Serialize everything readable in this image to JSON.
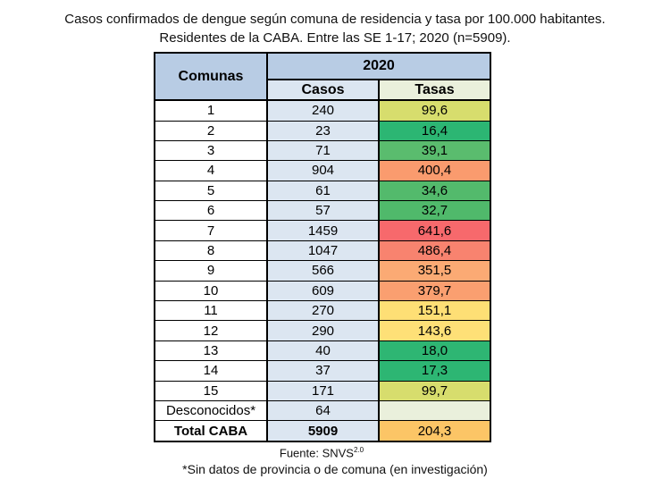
{
  "title": {
    "line1": "Casos confirmados de dengue según comuna de residencia y tasa por 100.000 habitantes.",
    "line2": "Residentes de la CABA. Entre las SE 1-17; 2020 (n=5909)."
  },
  "chart_data": {
    "type": "table",
    "title": "Casos confirmados de dengue según comuna de residencia y tasa por 100.000 habitantes. Residentes de la CABA. Entre las SE 1-17; 2020 (n=5909).",
    "year": "2020",
    "columns": [
      "Comunas",
      "Casos",
      "Tasas"
    ],
    "rows": [
      [
        "1",
        240,
        99.6
      ],
      [
        "2",
        23,
        16.4
      ],
      [
        "3",
        71,
        39.1
      ],
      [
        "4",
        904,
        400.4
      ],
      [
        "5",
        61,
        34.6
      ],
      [
        "6",
        57,
        32.7
      ],
      [
        "7",
        1459,
        641.6
      ],
      [
        "8",
        1047,
        486.4
      ],
      [
        "9",
        566,
        351.5
      ],
      [
        "10",
        609,
        379.7
      ],
      [
        "11",
        270,
        151.1
      ],
      [
        "12",
        290,
        143.6
      ],
      [
        "13",
        40,
        18.0
      ],
      [
        "14",
        37,
        17.3
      ],
      [
        "15",
        171,
        99.7
      ],
      [
        "Desconocidos*",
        64,
        null
      ],
      [
        "Total CABA",
        5909,
        204.3
      ]
    ],
    "notes": "Tasas column uses a green-yellow-red color scale (min 16,4 green; max 641,6 red)"
  },
  "table": {
    "corner_header": "Comunas",
    "year_header": "2020",
    "casos_header": "Casos",
    "tasas_header": "Tasas",
    "colors": {
      "header_blue": "#b8cce4",
      "casos_bg": "#dce6f1",
      "tasas_header_bg": "#eaf0dc",
      "border": "#000000"
    },
    "rows": [
      {
        "comuna": "1",
        "casos": "240",
        "tasa": "99,6",
        "tasa_bg": "#d7dd6d",
        "bold": false
      },
      {
        "comuna": "2",
        "casos": "23",
        "tasa": "16,4",
        "tasa_bg": "#2cb673",
        "bold": false
      },
      {
        "comuna": "3",
        "casos": "71",
        "tasa": "39,1",
        "tasa_bg": "#5abc6e",
        "bold": false
      },
      {
        "comuna": "4",
        "casos": "904",
        "tasa": "400,4",
        "tasa_bg": "#fa9b6e",
        "bold": false
      },
      {
        "comuna": "5",
        "casos": "61",
        "tasa": "34,6",
        "tasa_bg": "#53ba6c",
        "bold": false
      },
      {
        "comuna": "6",
        "casos": "57",
        "tasa": "32,7",
        "tasa_bg": "#50b96b",
        "bold": false
      },
      {
        "comuna": "7",
        "casos": "1459",
        "tasa": "641,6",
        "tasa_bg": "#f7696c",
        "bold": false
      },
      {
        "comuna": "8",
        "casos": "1047",
        "tasa": "486,4",
        "tasa_bg": "#f8836f",
        "bold": false
      },
      {
        "comuna": "9",
        "casos": "566",
        "tasa": "351,5",
        "tasa_bg": "#fbaa74",
        "bold": false
      },
      {
        "comuna": "10",
        "casos": "609",
        "tasa": "379,7",
        "tasa_bg": "#fa9f70",
        "bold": false
      },
      {
        "comuna": "11",
        "casos": "270",
        "tasa": "151,1",
        "tasa_bg": "#fedf75",
        "bold": false
      },
      {
        "comuna": "12",
        "casos": "290",
        "tasa": "143,6",
        "tasa_bg": "#fee077",
        "bold": false
      },
      {
        "comuna": "13",
        "casos": "40",
        "tasa": "18,0",
        "tasa_bg": "#2eb673",
        "bold": false
      },
      {
        "comuna": "14",
        "casos": "37",
        "tasa": "17,3",
        "tasa_bg": "#2db673",
        "bold": false
      },
      {
        "comuna": "15",
        "casos": "171",
        "tasa": "99,7",
        "tasa_bg": "#d7dd6d",
        "bold": false
      },
      {
        "comuna": "Desconocidos*",
        "casos": "64",
        "tasa": "",
        "tasa_bg": "#eaf0dc",
        "bold": false
      },
      {
        "comuna": "Total CABA",
        "casos": "5909",
        "tasa": "204,3",
        "tasa_bg": "#fcc566",
        "bold": true
      }
    ]
  },
  "footer": {
    "fuente_prefix": "Fuente: SNVS",
    "fuente_sup": "2.0",
    "note": "*Sin datos de provincia o de comuna (en investigación)"
  }
}
